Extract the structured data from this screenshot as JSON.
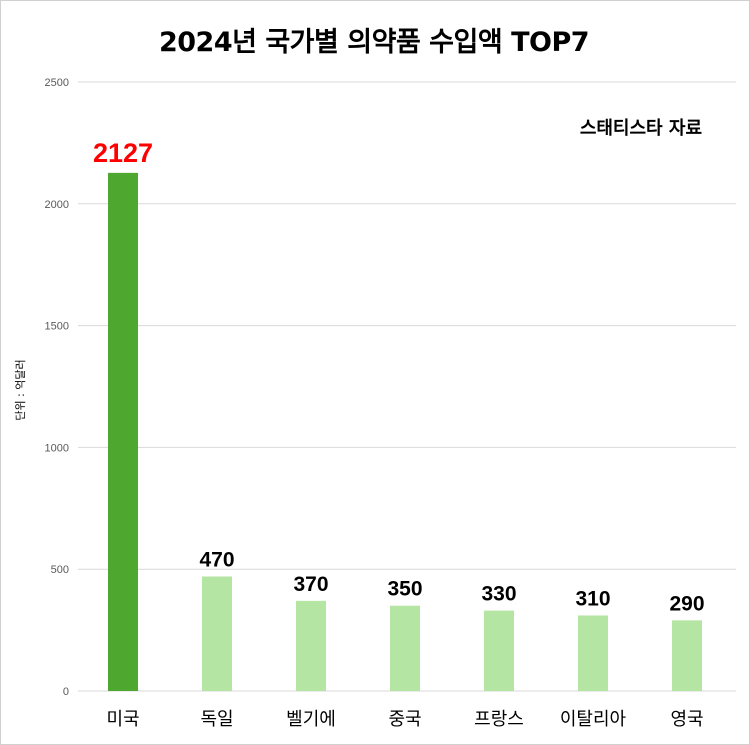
{
  "chart_data": {
    "type": "bar",
    "title": "2024년 국가별 의약품 수입액 TOP7",
    "source_note": "스태티스타 자료",
    "ylabel": "단위 : 억달러",
    "categories": [
      "미국",
      "독일",
      "벨기에",
      "중국",
      "프랑스",
      "이탈리아",
      "영국"
    ],
    "values": [
      2127,
      470,
      370,
      350,
      330,
      310,
      290
    ],
    "ylim": [
      0,
      2500
    ],
    "yticks": [
      0,
      500,
      1000,
      1500,
      2000,
      2500
    ],
    "grid": true,
    "legend": "none",
    "colors": {
      "highlight_bar": "#4ea72e",
      "bar": "#b4e5a2",
      "highlight_label": "#ff0000",
      "label": "#000000",
      "grid": "#d9d9d9"
    }
  }
}
